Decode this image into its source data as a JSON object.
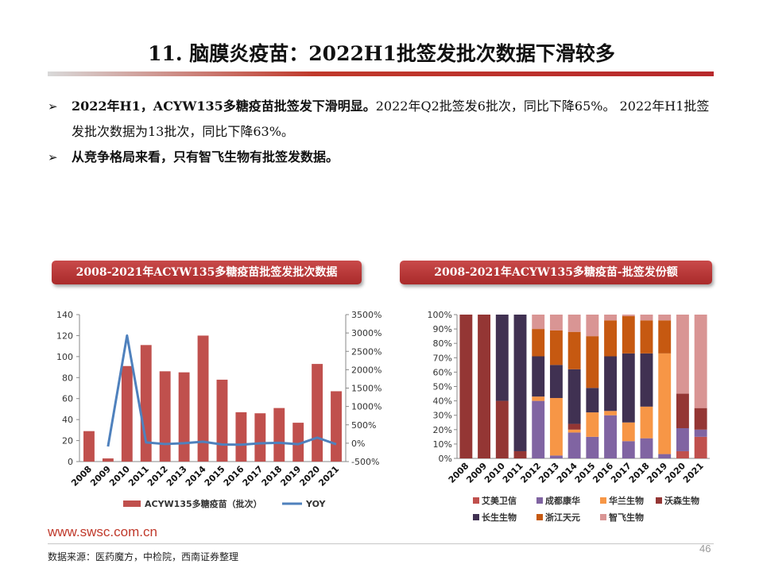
{
  "title": "11. 脑膜炎疫苗：2022H1批签发批次数据下滑较多",
  "bullets": [
    {
      "bold": "2022年H1，ACYW135多糖疫苗批签发下滑明显。",
      "normal": "2022年Q2批签发6批次，同比下降65%。 2022年H1批签发批次数据为13批次，同比下降63%。"
    },
    {
      "bold": "从竞争格局来看，只有智飞生物有批签发数据。",
      "normal": ""
    }
  ],
  "colors": {
    "accent": "#b8292c",
    "bar": "#c0504d",
    "line": "#4f81bd"
  },
  "chart_left_title": "2008-2021年ACYW135多糖疫苗批签发批次数据",
  "chart_right_title": "2008-2021年ACYW135多糖疫苗-批签发份额",
  "chart_data": [
    {
      "type": "bar",
      "categories": [
        "2008",
        "2009",
        "2010",
        "2011",
        "2012",
        "2013",
        "2014",
        "2015",
        "2016",
        "2017",
        "2018",
        "2019",
        "2020",
        "2021"
      ],
      "series": [
        {
          "name": "ACYW135多糖疫苗（批次）",
          "type": "bar",
          "axis": "left",
          "values": [
            29,
            3,
            91,
            111,
            86,
            85,
            120,
            78,
            47,
            46,
            51,
            37,
            93,
            67
          ]
        },
        {
          "name": "YOY",
          "type": "line",
          "axis": "right",
          "values": [
            null,
            -90,
            2930,
            22,
            -23,
            -1,
            41,
            -35,
            -40,
            -2,
            11,
            -27,
            151,
            -28
          ]
        }
      ],
      "ylim_left": [
        0,
        140
      ],
      "yticks_left": [
        "0",
        "20",
        "40",
        "60",
        "80",
        "100",
        "120",
        "140"
      ],
      "ylim_right": [
        -500,
        3500
      ],
      "yticks_right": [
        "-500%",
        "0%",
        "500%",
        "1000%",
        "1500%",
        "2000%",
        "2500%",
        "3000%",
        "3500%"
      ],
      "legend_placement": "bottom"
    },
    {
      "type": "bar",
      "stacked": true,
      "categories": [
        "2008",
        "2009",
        "2010",
        "2011",
        "2012",
        "2013",
        "2014",
        "2015",
        "2016",
        "2017",
        "2018",
        "2019",
        "2020",
        "2021"
      ],
      "series": [
        {
          "name": "艾美卫信",
          "values": [
            0,
            0,
            0,
            0,
            0,
            0,
            0,
            0,
            0,
            0,
            0,
            0,
            5,
            15
          ]
        },
        {
          "name": "成都康华",
          "values": [
            0,
            0,
            0,
            0,
            40,
            2,
            18,
            15,
            30,
            12,
            14,
            3,
            16,
            5
          ]
        },
        {
          "name": "华兰生物",
          "values": [
            0,
            0,
            0,
            0,
            3,
            40,
            2,
            17,
            3,
            13,
            22,
            70,
            0,
            0
          ]
        },
        {
          "name": "沃森生物",
          "values": [
            100,
            100,
            40,
            5,
            0,
            0,
            4,
            0,
            0,
            0,
            0,
            0,
            24,
            15
          ]
        },
        {
          "name": "长生生物",
          "values": [
            0,
            0,
            60,
            95,
            28,
            23,
            38,
            17,
            38,
            48,
            37,
            0,
            0,
            0
          ]
        },
        {
          "name": "浙江天元",
          "values": [
            0,
            0,
            0,
            0,
            19,
            24,
            26,
            36,
            25,
            26,
            23,
            23,
            0,
            0
          ]
        },
        {
          "name": "智飞生物",
          "values": [
            0,
            0,
            0,
            0,
            10,
            11,
            12,
            15,
            4,
            1,
            4,
            4,
            55,
            65
          ]
        }
      ],
      "ylim": [
        0,
        100
      ],
      "yticks": [
        "0%",
        "10%",
        "20%",
        "30%",
        "40%",
        "50%",
        "60%",
        "70%",
        "80%",
        "90%",
        "100%"
      ],
      "colors": [
        "#c0504d",
        "#8064a2",
        "#f79646",
        "#943634",
        "#403152",
        "#c65911",
        "#d99594"
      ],
      "legend_placement": "bottom"
    }
  ],
  "footer": {
    "url": "www.swsc.com.cn",
    "source": "数据来源：医药魔方，中检院，西南证券整理",
    "page": "46"
  }
}
